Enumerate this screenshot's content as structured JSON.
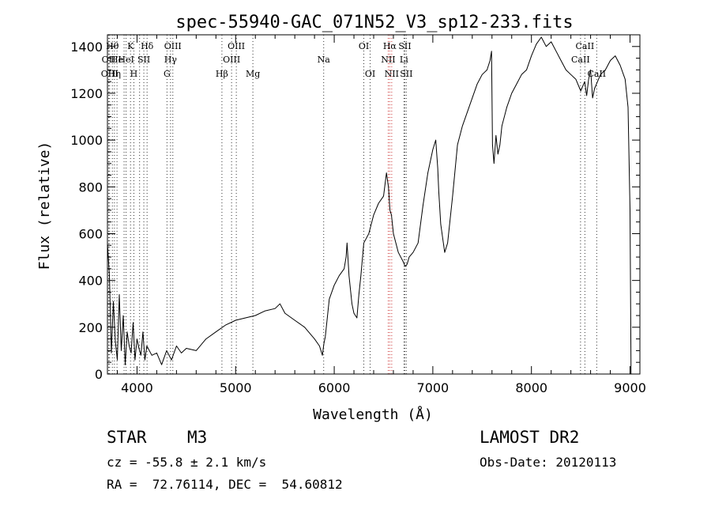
{
  "chart_data": {
    "type": "line",
    "title": "spec-55940-GAC_071N52_V3_sp12-233.fits",
    "xlabel": "Wavelength (Å)",
    "ylabel": "Flux (relative)",
    "xlim": [
      3700,
      9100
    ],
    "ylim": [
      0,
      1450
    ],
    "xticks": [
      4000,
      5000,
      6000,
      7000,
      8000,
      9000
    ],
    "yticks": [
      0,
      200,
      400,
      600,
      800,
      1000,
      1200,
      1400
    ],
    "grid": false,
    "series": [
      {
        "x": [
          3700,
          3720,
          3740,
          3760,
          3780,
          3800,
          3820,
          3840,
          3860,
          3880,
          3900,
          3920,
          3940,
          3960,
          3980,
          4000,
          4020,
          4040,
          4060,
          4080,
          4100,
          4150,
          4200,
          4250,
          4300,
          4350,
          4400,
          4450,
          4500,
          4600,
          4700,
          4800,
          4900,
          5000,
          5100,
          5200,
          5300,
          5400,
          5450,
          5500,
          5600,
          5700,
          5800,
          5850,
          5880,
          5895,
          5910,
          5950,
          6000,
          6050,
          6100,
          6120,
          6130,
          6150,
          6180,
          6200,
          6230,
          6250,
          6270,
          6300,
          6350,
          6400,
          6450,
          6500,
          6530,
          6550,
          6565,
          6580,
          6600,
          6650,
          6700,
          6720,
          6740,
          6760,
          6800,
          6850,
          6900,
          6950,
          7000,
          7030,
          7050,
          7060,
          7080,
          7100,
          7120,
          7150,
          7200,
          7250,
          7300,
          7350,
          7400,
          7450,
          7500,
          7550,
          7580,
          7595,
          7605,
          7620,
          7640,
          7660,
          7680,
          7700,
          7750,
          7800,
          7850,
          7900,
          7950,
          8000,
          8050,
          8100,
          8150,
          8200,
          8250,
          8300,
          8350,
          8400,
          8450,
          8500,
          8540,
          8560,
          8580,
          8600,
          8620,
          8640,
          8660,
          8700,
          8750,
          8800,
          8850,
          8900,
          8950,
          8980,
          9000,
          9010
        ],
        "y": [
          560,
          420,
          90,
          310,
          140,
          60,
          340,
          100,
          250,
          40,
          180,
          120,
          90,
          220,
          60,
          150,
          110,
          80,
          180,
          60,
          120,
          80,
          90,
          40,
          100,
          60,
          120,
          90,
          110,
          100,
          150,
          180,
          210,
          230,
          240,
          250,
          270,
          280,
          300,
          260,
          230,
          200,
          150,
          120,
          80,
          130,
          160,
          320,
          380,
          420,
          450,
          500,
          560,
          420,
          300,
          260,
          240,
          340,
          420,
          560,
          600,
          680,
          730,
          760,
          860,
          800,
          700,
          680,
          600,
          520,
          480,
          460,
          470,
          500,
          520,
          560,
          720,
          860,
          960,
          1000,
          880,
          780,
          640,
          580,
          520,
          560,
          760,
          980,
          1060,
          1120,
          1180,
          1240,
          1280,
          1300,
          1340,
          1380,
          980,
          900,
          1020,
          940,
          980,
          1060,
          1140,
          1200,
          1240,
          1280,
          1300,
          1360,
          1410,
          1440,
          1400,
          1420,
          1380,
          1340,
          1300,
          1280,
          1260,
          1210,
          1250,
          1190,
          1260,
          1300,
          1180,
          1220,
          1240,
          1280,
          1300,
          1340,
          1360,
          1320,
          1260,
          1140,
          700,
          0
        ]
      }
    ],
    "line_markers": [
      {
        "w": 3712,
        "label": "OII",
        "row": 1
      },
      {
        "w": 3722,
        "label": "OIII",
        "row": 2
      },
      {
        "w": 3750,
        "label": "Hθ",
        "row": 0
      },
      {
        "w": 3771,
        "label": "Hη",
        "row": 2
      },
      {
        "w": 3797,
        "label": "He",
        "row": 1
      },
      {
        "w": 3869,
        "label": "",
        "row": 0
      },
      {
        "w": 3889,
        "label": "HeI",
        "row": 1
      },
      {
        "w": 3934,
        "label": "K",
        "row": 0
      },
      {
        "w": 3968,
        "label": "H",
        "row": 2
      },
      {
        "w": 4026,
        "label": "",
        "row": 0
      },
      {
        "w": 4069,
        "label": "SII",
        "row": 1
      },
      {
        "w": 4102,
        "label": "Hδ",
        "row": 0
      },
      {
        "w": 4304,
        "label": "G",
        "row": 2
      },
      {
        "w": 4340,
        "label": "Hγ",
        "row": 1
      },
      {
        "w": 4363,
        "label": "OIII",
        "row": 0
      },
      {
        "w": 4861,
        "label": "Hβ",
        "row": 2
      },
      {
        "w": 4959,
        "label": "OIII",
        "row": 1
      },
      {
        "w": 5007,
        "label": "OIII",
        "row": 0
      },
      {
        "w": 5175,
        "label": "Mg",
        "row": 2
      },
      {
        "w": 5893,
        "label": "Na",
        "row": 1
      },
      {
        "w": 6300,
        "label": "OI",
        "row": 0
      },
      {
        "w": 6364,
        "label": "OI",
        "row": 2
      },
      {
        "w": 6548,
        "label": "NII",
        "row": 1
      },
      {
        "w": 6563,
        "label": "Hα",
        "row": 0
      },
      {
        "w": 6583,
        "label": "NII",
        "row": 2
      },
      {
        "w": 6707,
        "label": "Li",
        "row": 1
      },
      {
        "w": 6716,
        "label": "SII",
        "row": 0
      },
      {
        "w": 6731,
        "label": "SII",
        "row": 2
      },
      {
        "w": 8498,
        "label": "CaII",
        "row": 1
      },
      {
        "w": 8542,
        "label": "CaII",
        "row": 0
      },
      {
        "w": 8662,
        "label": "CaII",
        "row": 2
      }
    ]
  },
  "info": {
    "object_class": "STAR",
    "subclass": "M3",
    "survey": "LAMOST DR2",
    "redshift": "cz = -55.8 ± 2.1 km/s",
    "obs_date": "Obs-Date: 20120113",
    "coords": "RA =  72.76114, DEC =  54.60812"
  },
  "colors": {
    "line": "#000000",
    "marker_line": "#cc3333"
  }
}
